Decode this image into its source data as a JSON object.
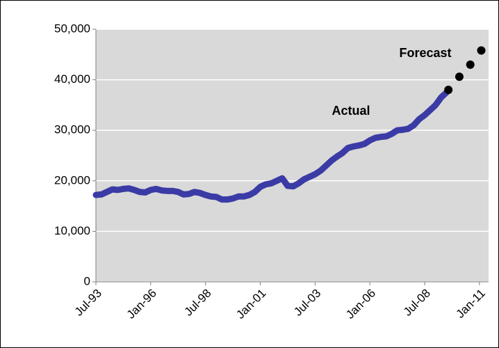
{
  "chart_data": {
    "type": "line",
    "series": [
      {
        "name": "Actual",
        "color": "#3b3ba6",
        "x": [
          "1993-07",
          "1993-10",
          "1994-01",
          "1994-04",
          "1994-07",
          "1994-10",
          "1995-01",
          "1995-04",
          "1995-07",
          "1995-10",
          "1996-01",
          "1996-04",
          "1996-07",
          "1996-10",
          "1997-01",
          "1997-04",
          "1997-07",
          "1997-10",
          "1998-01",
          "1998-04",
          "1998-07",
          "1998-10",
          "1999-01",
          "1999-04",
          "1999-07",
          "1999-10",
          "2000-01",
          "2000-04",
          "2000-07",
          "2000-10",
          "2001-01",
          "2001-04",
          "2001-07",
          "2001-10",
          "2002-01",
          "2002-04",
          "2002-07",
          "2002-10",
          "2003-01",
          "2003-04",
          "2003-07",
          "2003-10",
          "2004-01",
          "2004-04",
          "2004-07",
          "2004-10",
          "2005-01",
          "2005-04",
          "2005-07",
          "2005-10",
          "2006-01",
          "2006-04",
          "2006-07",
          "2006-10",
          "2007-01",
          "2007-04",
          "2007-07",
          "2007-10",
          "2008-01",
          "2008-04",
          "2008-07",
          "2008-10",
          "2009-01",
          "2009-04",
          "2009-07"
        ],
        "values": [
          17200,
          17300,
          17800,
          18300,
          18200,
          18400,
          18500,
          18200,
          17800,
          17700,
          18200,
          18400,
          18100,
          18000,
          18000,
          17800,
          17300,
          17400,
          17800,
          17600,
          17200,
          16900,
          16800,
          16300,
          16300,
          16500,
          16900,
          16900,
          17200,
          17800,
          18800,
          19300,
          19500,
          20000,
          20500,
          19000,
          18900,
          19500,
          20300,
          20800,
          21300,
          22000,
          23000,
          24000,
          24800,
          25500,
          26500,
          26800,
          27000,
          27300,
          28000,
          28500,
          28700,
          28800,
          29300,
          30000,
          30100,
          30300,
          31000,
          32200,
          33000,
          34000,
          35000,
          36500,
          37500
        ]
      },
      {
        "name": "Forecast",
        "color": "#000000",
        "x": [
          "2009-08",
          "2010-02",
          "2010-08",
          "2011-02"
        ],
        "values": [
          38000,
          40600,
          43000,
          45800
        ]
      }
    ],
    "xlim": [
      "1993-07",
      "2011-06"
    ],
    "xticks": [
      {
        "value": "1993-07",
        "label": "Jul-93"
      },
      {
        "value": "1996-01",
        "label": "Jan-96"
      },
      {
        "value": "1998-07",
        "label": "Jul-98"
      },
      {
        "value": "2001-01",
        "label": "Jan-01"
      },
      {
        "value": "2003-07",
        "label": "Jul-03"
      },
      {
        "value": "2006-01",
        "label": "Jan-06"
      },
      {
        "value": "2008-07",
        "label": "Jul-08"
      },
      {
        "value": "2011-01",
        "label": "Jan-11"
      }
    ],
    "ylim": [
      0,
      50000
    ],
    "yticks": [
      0,
      {
        "value": 10000,
        "label": "10,000"
      },
      {
        "value": 20000,
        "label": "20,000"
      },
      {
        "value": 30000,
        "label": "30,000"
      },
      {
        "value": 40000,
        "label": "40,000"
      },
      {
        "value": 50000,
        "label": "50,000"
      }
    ],
    "grid": true
  }
}
